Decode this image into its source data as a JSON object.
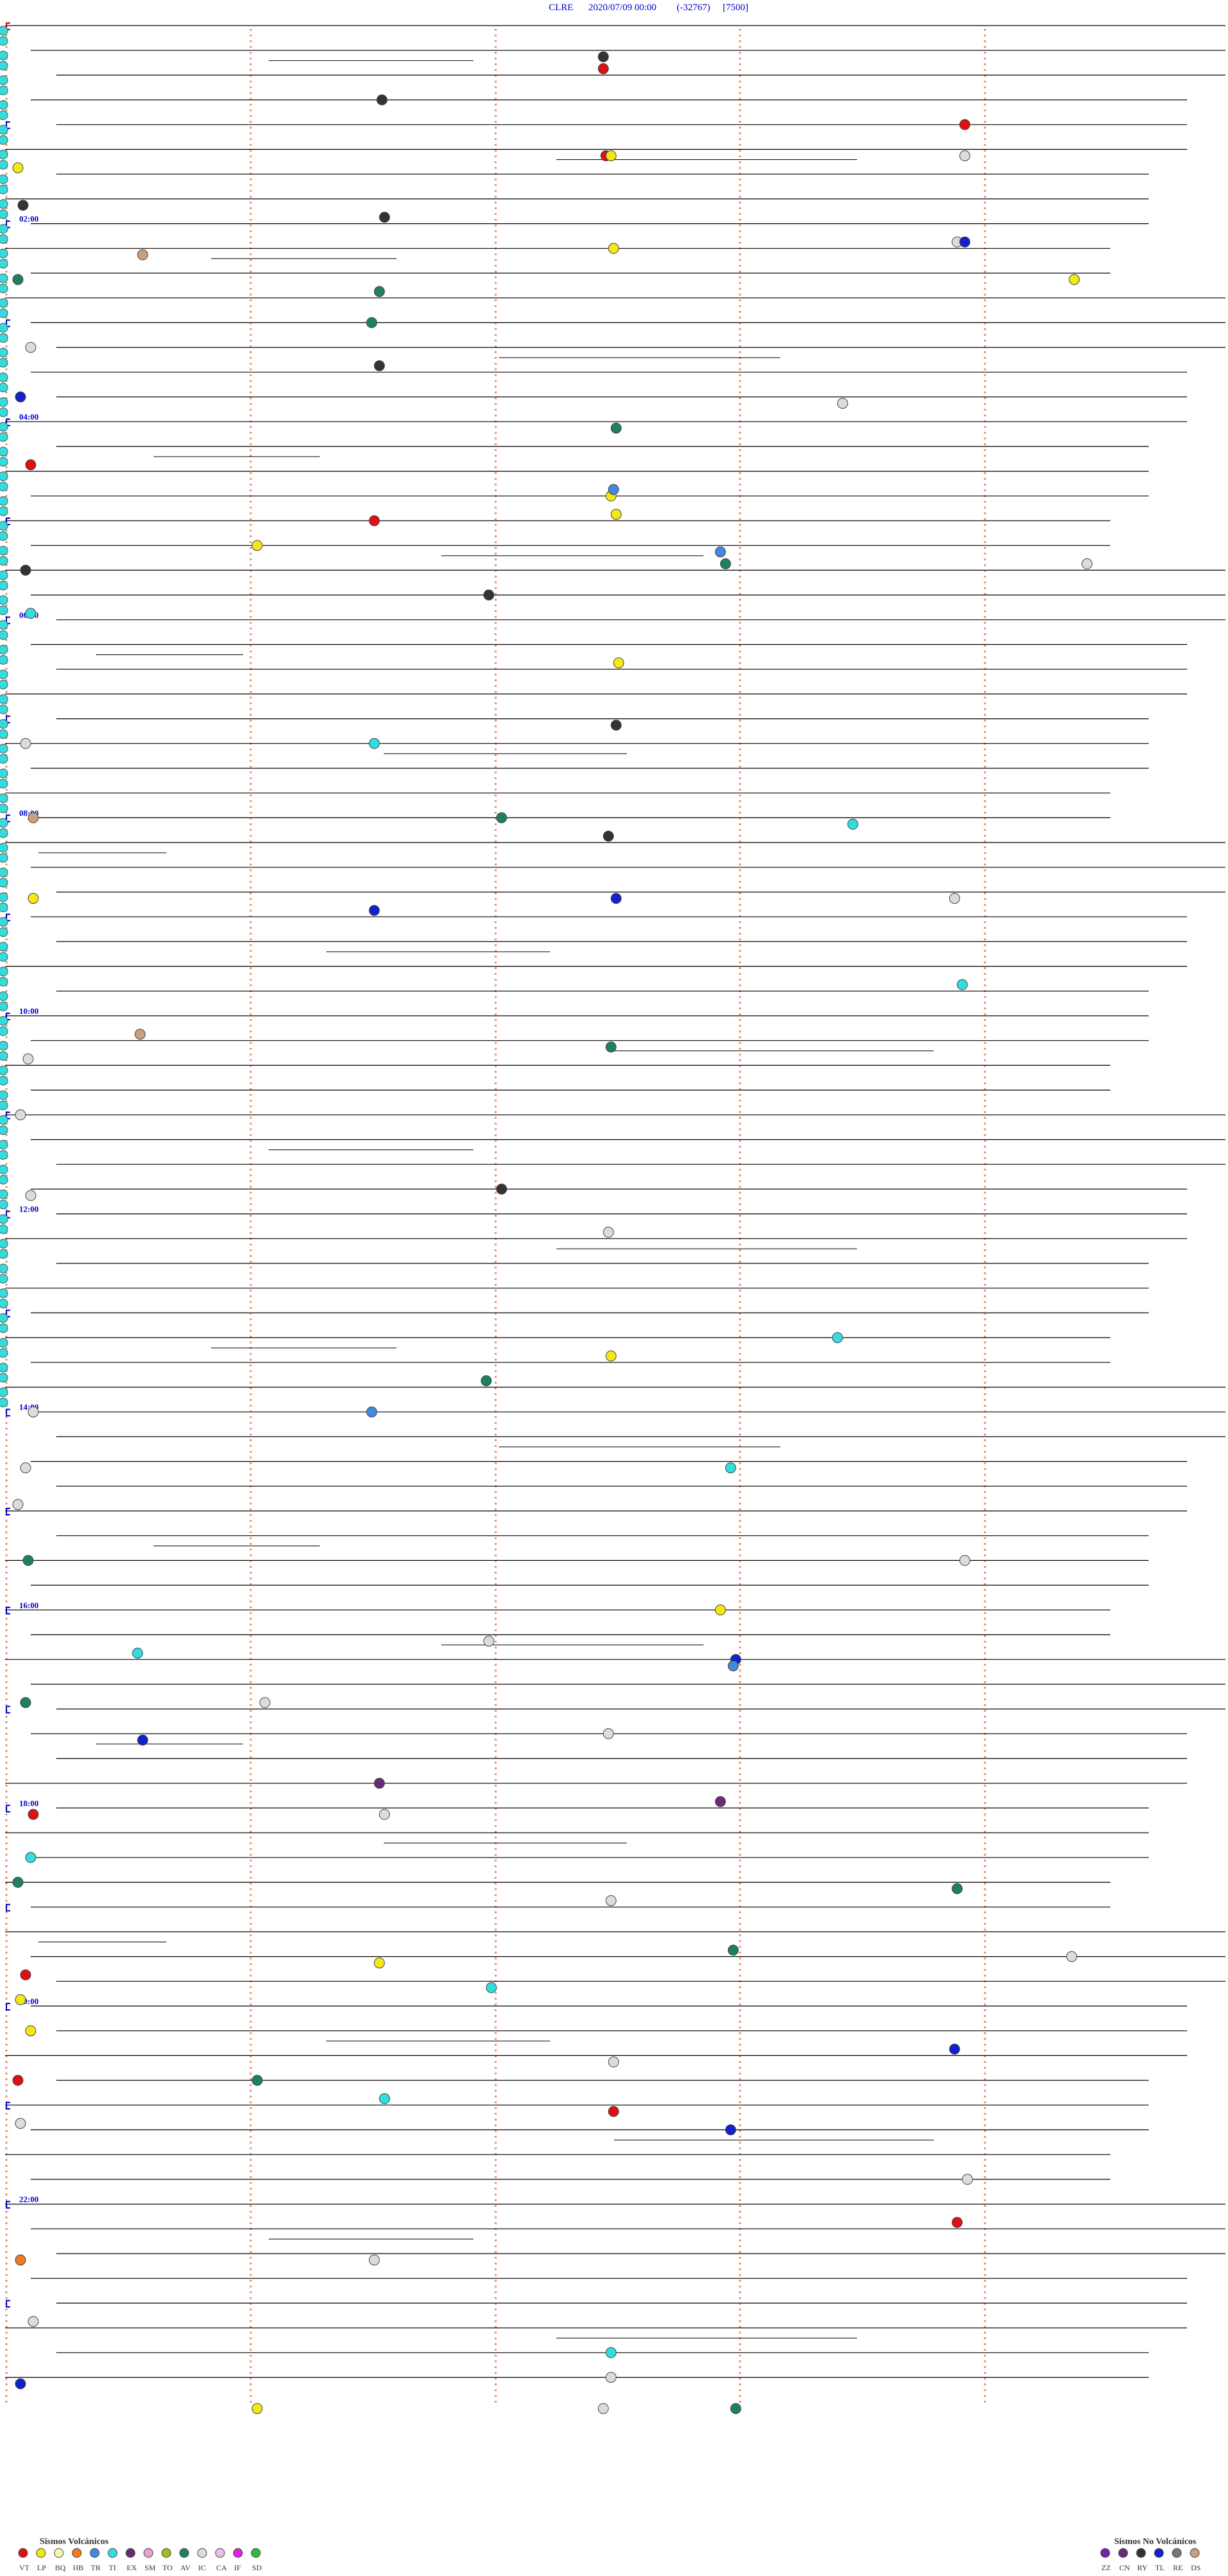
{
  "header": {
    "station": "CLRE",
    "date": "2020/07/09 00:00",
    "offset": "(-32767)",
    "scale": "[7500]"
  },
  "colors": {
    "trace": "#000000",
    "hour_label": "#0000cc",
    "bracket": "#0000cc",
    "bracket_first": "#cc0000",
    "guide": "#e8906a"
  },
  "chart_data": {
    "type": "scatter",
    "description_axis": "drum seismogram rows, 15 minutes each, 00:00-24:00",
    "time_labels": [
      "02:00",
      "04:00",
      "06:00",
      "08:00",
      "10:00",
      "12:00",
      "14:00",
      "16:00",
      "18:00",
      "20:00",
      "22:00"
    ],
    "label_rows": [
      8,
      16,
      24,
      32,
      40,
      48,
      56,
      64,
      72,
      80,
      88
    ],
    "num_rows": 96,
    "legend_left": {
      "title": "Sismos Volcánicos",
      "items": [
        {
          "code": "VT",
          "color": "#dd1111"
        },
        {
          "code": "LP",
          "color": "#f5e616"
        },
        {
          "code": "BQ",
          "color": "#f7f7b0"
        },
        {
          "code": "HB",
          "color": "#ee7a22"
        },
        {
          "code": "TR",
          "color": "#4488dd"
        },
        {
          "code": "TI",
          "color": "#33dddd"
        },
        {
          "code": "EX",
          "color": "#6a2a7a"
        },
        {
          "code": "SM",
          "color": "#e7a0d2"
        },
        {
          "code": "TO",
          "color": "#a8b820"
        },
        {
          "code": "AV",
          "color": "#1f7f64"
        },
        {
          "code": "IC",
          "color": "#dcdcdc"
        },
        {
          "code": "CA",
          "color": "#e8c0e8"
        },
        {
          "code": "IF",
          "color": "#dd22dd"
        },
        {
          "code": "SD",
          "color": "#33bb33"
        }
      ]
    },
    "legend_right": {
      "title": "Sismos No Volcánicos",
      "items": [
        {
          "code": "ZZ",
          "color": "#7722aa"
        },
        {
          "code": "CN",
          "color": "#6a2a7a"
        },
        {
          "code": "RY",
          "color": "#333333"
        },
        {
          "code": "TL",
          "color": "#1122cc"
        },
        {
          "code": "RE",
          "color": "#777777"
        },
        {
          "code": "DS",
          "color": "#c8a080"
        }
      ]
    },
    "events": [
      {
        "t": 2.5,
        "c": "VT"
      },
      {
        "t": 4.8,
        "c": "VT"
      },
      {
        "t": 5.5,
        "c": "VT"
      },
      {
        "t": 18.0,
        "c": "VT"
      },
      {
        "t": 20.3,
        "c": "VT"
      },
      {
        "t": 72.0,
        "c": "VT"
      },
      {
        "t": 79.0,
        "c": "VT"
      },
      {
        "t": 83.0,
        "c": "VT"
      },
      {
        "t": 84.5,
        "c": "VT"
      },
      {
        "t": 89.8,
        "c": "VT"
      },
      {
        "t": 3.3,
        "c": "RY"
      },
      {
        "t": 7.0,
        "c": "RY"
      },
      {
        "t": 8.3,
        "c": "RY"
      },
      {
        "t": 22.0,
        "c": "RY"
      },
      {
        "t": 1.5,
        "c": "RY"
      },
      {
        "t": 14.3,
        "c": "RY"
      },
      {
        "t": 23.4,
        "c": "RY"
      },
      {
        "t": 28.5,
        "c": "RY"
      },
      {
        "t": 33.5,
        "c": "RY"
      },
      {
        "t": 47.4,
        "c": "RY"
      },
      {
        "t": 5.5,
        "c": "LP"
      },
      {
        "t": 6.0,
        "c": "LP"
      },
      {
        "t": 9.5,
        "c": "LP"
      },
      {
        "t": 10.9,
        "c": "LP"
      },
      {
        "t": 20.5,
        "c": "LP"
      },
      {
        "t": 21.2,
        "c": "LP"
      },
      {
        "t": 35.0,
        "c": "LP"
      },
      {
        "t": 54.5,
        "c": "LP"
      },
      {
        "t": 64.6,
        "c": "LP"
      },
      {
        "t": 78.3,
        "c": "LP"
      },
      {
        "t": 80.0,
        "c": "LP"
      },
      {
        "t": 81.0,
        "c": "LP"
      },
      {
        "t": 96.2,
        "c": "LP"
      },
      {
        "t": 26.5,
        "c": "LP"
      },
      {
        "t": 19.5,
        "c": "LP"
      },
      {
        "t": 10.0,
        "c": "AV"
      },
      {
        "t": 11.3,
        "c": "AV"
      },
      {
        "t": 12.3,
        "c": "AV"
      },
      {
        "t": 16.5,
        "c": "AV"
      },
      {
        "t": 22.6,
        "c": "AV"
      },
      {
        "t": 32.4,
        "c": "AV"
      },
      {
        "t": 41.5,
        "c": "AV"
      },
      {
        "t": 55.4,
        "c": "AV"
      },
      {
        "t": 62.0,
        "c": "AV"
      },
      {
        "t": 75.8,
        "c": "AV"
      },
      {
        "t": 78.6,
        "c": "AV"
      },
      {
        "t": 83.2,
        "c": "AV"
      },
      {
        "t": 96.6,
        "c": "AV"
      },
      {
        "t": 68.0,
        "c": "AV"
      },
      {
        "t": 75.0,
        "c": "AV"
      },
      {
        "t": 5.8,
        "c": "IC"
      },
      {
        "t": 9.8,
        "c": "IC"
      },
      {
        "t": 13.0,
        "c": "IC"
      },
      {
        "t": 15.7,
        "c": "IC"
      },
      {
        "t": 22.9,
        "c": "IC"
      },
      {
        "t": 29.0,
        "c": "IC"
      },
      {
        "t": 35.8,
        "c": "IC"
      },
      {
        "t": 42.0,
        "c": "IC"
      },
      {
        "t": 44.0,
        "c": "IC"
      },
      {
        "t": 47.0,
        "c": "IC"
      },
      {
        "t": 49.5,
        "c": "IC"
      },
      {
        "t": 56.0,
        "c": "IC"
      },
      {
        "t": 58.0,
        "c": "IC"
      },
      {
        "t": 60.0,
        "c": "IC"
      },
      {
        "t": 62.8,
        "c": "IC"
      },
      {
        "t": 65.4,
        "c": "IC"
      },
      {
        "t": 68.2,
        "c": "IC"
      },
      {
        "t": 69.5,
        "c": "IC"
      },
      {
        "t": 72.3,
        "c": "IC"
      },
      {
        "t": 76.5,
        "c": "IC"
      },
      {
        "t": 78.9,
        "c": "IC"
      },
      {
        "t": 82.5,
        "c": "IC"
      },
      {
        "t": 85.0,
        "c": "IC"
      },
      {
        "t": 87.8,
        "c": "IC"
      },
      {
        "t": 90.3,
        "c": "IC"
      },
      {
        "t": 93.0,
        "c": "IC"
      },
      {
        "t": 95.5,
        "c": "IC"
      },
      {
        "t": 96.5,
        "c": "IC"
      },
      {
        "t": 9.8,
        "c": "TL"
      },
      {
        "t": 15.0,
        "c": "TL"
      },
      {
        "t": 35.5,
        "c": "TL"
      },
      {
        "t": 36.3,
        "c": "TL"
      },
      {
        "t": 66.6,
        "c": "TL"
      },
      {
        "t": 69.1,
        "c": "TL"
      },
      {
        "t": 82.8,
        "c": "TL"
      },
      {
        "t": 85.6,
        "c": "TL"
      },
      {
        "t": 95.0,
        "c": "TL"
      },
      {
        "t": 24.0,
        "c": "TI"
      },
      {
        "t": 29.3,
        "c": "TI"
      },
      {
        "t": 32.7,
        "c": "TI"
      },
      {
        "t": 39.8,
        "c": "TI"
      },
      {
        "t": 53.7,
        "c": "TI"
      },
      {
        "t": 58.6,
        "c": "TI"
      },
      {
        "t": 66.1,
        "c": "TI"
      },
      {
        "t": 74.0,
        "c": "TI"
      },
      {
        "t": 79.4,
        "c": "TI"
      },
      {
        "t": 84.3,
        "c": "TI"
      },
      {
        "t": 94.5,
        "c": "TI"
      },
      {
        "t": 21.6,
        "c": "TR"
      },
      {
        "t": 19.5,
        "c": "TR"
      },
      {
        "t": 56.3,
        "c": "TR"
      },
      {
        "t": 66.6,
        "c": "TR"
      },
      {
        "t": 41.1,
        "c": "DS"
      },
      {
        "t": 32.0,
        "c": "DS"
      },
      {
        "t": 9.1,
        "c": "DS"
      },
      {
        "t": 72.6,
        "c": "EX"
      },
      {
        "t": 71.3,
        "c": "EX"
      },
      {
        "t": 90.0,
        "c": "HB"
      }
    ]
  }
}
